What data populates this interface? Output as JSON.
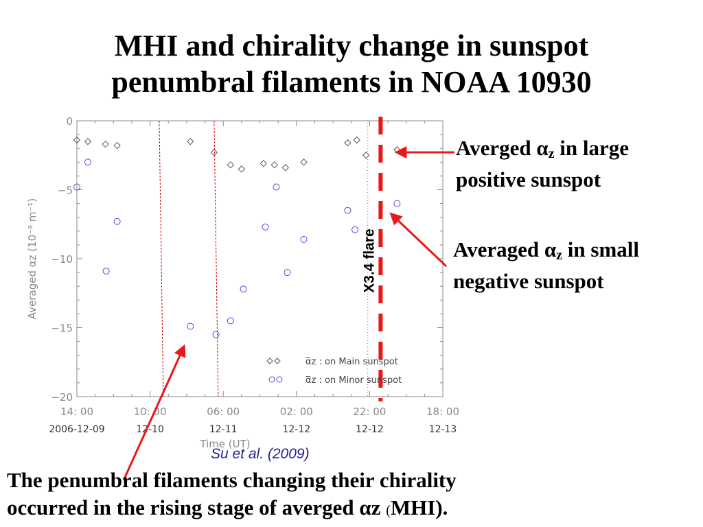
{
  "title": {
    "line1": "MHI and chirality change in sunspot",
    "line2": "penumbral filaments in NOAA 10930"
  },
  "annotations": {
    "large": {
      "prefix": "Averged α",
      "sub": "z",
      "suffix": " in large",
      "line2": "positive sunspot"
    },
    "small": {
      "prefix": "Averaged α",
      "sub": "z",
      "suffix": " in small",
      "line2": "negative sunspot"
    },
    "flare_label": "X3.4 flare"
  },
  "citation": "Su et al. (2009)",
  "caption": {
    "line1": "The penumbral filaments changing their chirality",
    "line2_main": "occurred in the rising stage of  averged αz ",
    "line2_paren": "(",
    "line2_end": "MHI)."
  },
  "colors": {
    "main_series": "#555555",
    "minor_series": "#4a4ad8",
    "flare_line": "#e81818",
    "dashed_lines": "#cc0000",
    "arrow": "#e81818",
    "axis": "#888888"
  },
  "chart_data": {
    "type": "scatter",
    "ylabel": "Averaged αz (10⁻⁸ m⁻¹)",
    "xlabel": "Time (UT)",
    "ylim": [
      -20,
      0
    ],
    "xlim": [
      0,
      100
    ],
    "yticks": [
      0,
      -5,
      -10,
      -15,
      -20
    ],
    "ytick_labels": [
      "0",
      "−5",
      "−10",
      "−15",
      "−20"
    ],
    "xticks": [
      {
        "x": 0,
        "time": "14: 00",
        "date": "2006-12-09"
      },
      {
        "x": 20,
        "time": "10: 00",
        "date": "12-10"
      },
      {
        "x": 40,
        "time": "06: 00",
        "date": "12-11"
      },
      {
        "x": 60,
        "time": "02: 00",
        "date": "12-12"
      },
      {
        "x": 80,
        "time": "22: 00",
        "date": "12-12"
      },
      {
        "x": 100,
        "time": "18: 00",
        "date": "12-13"
      }
    ],
    "grid": false,
    "legend": [
      {
        "marker": "diamond",
        "label": "α̅z : on Main sunspot"
      },
      {
        "marker": "circle",
        "label": "α̅z : on Minor sunspot"
      }
    ],
    "series": [
      {
        "name": "α̅z : on Main sunspot",
        "marker": "diamond",
        "points": [
          [
            0.0,
            -1.4
          ],
          [
            3.0,
            -1.5
          ],
          [
            7.8,
            -1.7
          ],
          [
            11.0,
            -1.8
          ],
          [
            31.0,
            -1.5
          ],
          [
            37.5,
            -2.3
          ],
          [
            42.0,
            -3.2
          ],
          [
            45.0,
            -3.5
          ],
          [
            51.0,
            -3.1
          ],
          [
            54.0,
            -3.2
          ],
          [
            57.0,
            -3.4
          ],
          [
            62.0,
            -3.0
          ],
          [
            74.0,
            -1.6
          ],
          [
            76.5,
            -1.4
          ],
          [
            79.0,
            -2.5
          ],
          [
            87.5,
            -2.1
          ]
        ]
      },
      {
        "name": "α̅z : on Minor sunspot",
        "marker": "circle",
        "points": [
          [
            0.0,
            -4.8
          ],
          [
            3.0,
            -3.0
          ],
          [
            8.0,
            -10.9
          ],
          [
            11.0,
            -7.3
          ],
          [
            31.0,
            -14.9
          ],
          [
            38.0,
            -15.5
          ],
          [
            42.0,
            -14.5
          ],
          [
            45.5,
            -12.2
          ],
          [
            51.5,
            -7.7
          ],
          [
            54.5,
            -4.8
          ],
          [
            57.5,
            -11.0
          ],
          [
            62.0,
            -8.6
          ],
          [
            74.0,
            -6.5
          ],
          [
            76.0,
            -7.9
          ],
          [
            87.5,
            -6.0
          ]
        ]
      }
    ],
    "vertical_lines": [
      {
        "x": 22.5,
        "style": "thin-dashed-red"
      },
      {
        "x": 37.5,
        "style": "thin-dashed-red"
      },
      {
        "x": 79.5,
        "style": "dotted-gray"
      },
      {
        "x": 83.0,
        "style": "thick-dashed-red",
        "label": "X3.4 flare"
      }
    ]
  }
}
